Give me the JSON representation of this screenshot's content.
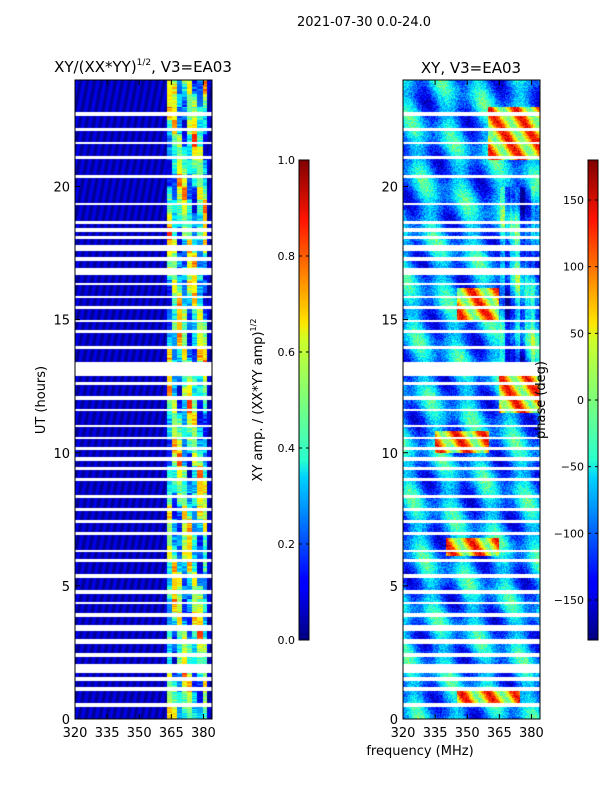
{
  "suptitle": "2021-07-30 0.0-24.0",
  "shared_xlabel": "frequency (MHz)",
  "chart_data": [
    {
      "type": "heatmap",
      "title_base": "XY/(XX*YY)",
      "title_sup": "1/2",
      "title_suffix": ", V3=EA03",
      "ylabel": "UT (hours)",
      "xlim": [
        320,
        384
      ],
      "ylim": [
        0,
        24
      ],
      "xticks": [
        "320",
        "335",
        "350",
        "365",
        "380"
      ],
      "xtick_values": [
        320,
        335,
        350,
        365,
        380
      ],
      "yticks": [
        "0",
        "5",
        "10",
        "15",
        "20"
      ],
      "ytick_values": [
        0,
        5,
        10,
        15,
        20
      ],
      "colorbar": {
        "label_base": "XY amp. / (XX*YY amp)",
        "label_sup": "1/2",
        "range": [
          0.0,
          1.0
        ],
        "ticks": [
          "0.0",
          "0.2",
          "0.4",
          "0.6",
          "0.8",
          "1.0"
        ],
        "tick_values": [
          0.0,
          0.2,
          0.4,
          0.6,
          0.8,
          1.0
        ]
      },
      "cmap": "jet"
    },
    {
      "type": "heatmap",
      "title": "XY, V3=EA03",
      "xlim": [
        320,
        384
      ],
      "ylim": [
        0,
        24
      ],
      "xticks": [
        "320",
        "335",
        "350",
        "365",
        "380"
      ],
      "xtick_values": [
        320,
        335,
        350,
        365,
        380
      ],
      "yticks": [
        "0",
        "5",
        "10",
        "15",
        "20"
      ],
      "ytick_values": [
        0,
        5,
        10,
        15,
        20
      ],
      "colorbar": {
        "label": "phase (deg)",
        "range": [
          -180,
          180
        ],
        "ticks": [
          "150",
          "100",
          "50",
          "0",
          "−50",
          "−100",
          "−150"
        ],
        "tick_values": [
          150,
          100,
          50,
          0,
          -50,
          -100,
          -150
        ]
      },
      "cmap": "jet"
    }
  ],
  "flagged_ut_bands": [
    [
      0.45,
      0.6
    ],
    [
      1.05,
      1.2
    ],
    [
      1.4,
      1.55
    ],
    [
      1.7,
      2.05
    ],
    [
      2.3,
      2.45
    ],
    [
      2.8,
      3.0
    ],
    [
      3.3,
      3.5
    ],
    [
      3.8,
      3.95
    ],
    [
      4.3,
      4.4
    ],
    [
      4.7,
      4.85
    ],
    [
      5.3,
      5.45
    ],
    [
      5.9,
      6.0
    ],
    [
      6.25,
      6.35
    ],
    [
      6.9,
      7.0
    ],
    [
      7.35,
      7.45
    ],
    [
      7.8,
      7.9
    ],
    [
      8.3,
      8.4
    ],
    [
      8.95,
      9.05
    ],
    [
      9.35,
      9.45
    ],
    [
      9.7,
      9.85
    ],
    [
      10.1,
      10.2
    ],
    [
      10.5,
      10.6
    ],
    [
      10.95,
      11.05
    ],
    [
      11.55,
      11.65
    ],
    [
      12.0,
      12.15
    ],
    [
      12.55,
      12.65
    ],
    [
      12.9,
      13.4
    ],
    [
      13.9,
      14.0
    ],
    [
      14.5,
      14.6
    ],
    [
      14.9,
      15.0
    ],
    [
      15.4,
      15.5
    ],
    [
      15.8,
      15.9
    ],
    [
      16.3,
      16.4
    ],
    [
      16.7,
      16.95
    ],
    [
      17.2,
      17.35
    ],
    [
      17.6,
      17.8
    ],
    [
      18.05,
      18.15
    ],
    [
      18.3,
      18.45
    ],
    [
      18.6,
      18.7
    ],
    [
      19.3,
      19.4
    ],
    [
      20.35,
      20.45
    ],
    [
      21.05,
      21.15
    ],
    [
      21.6,
      21.7
    ],
    [
      22.1,
      22.2
    ],
    [
      22.65,
      22.8
    ]
  ],
  "features": {
    "amp_bright_band_mhz": [
      363,
      382
    ],
    "phase_warm_patches": [
      {
        "f": [
          340,
          365
        ],
        "t": [
          6.1,
          6.8
        ]
      },
      {
        "f": [
          335,
          360
        ],
        "t": [
          10.0,
          10.8
        ]
      },
      {
        "f": [
          345,
          365
        ],
        "t": [
          15.0,
          16.2
        ]
      },
      {
        "f": [
          365,
          384
        ],
        "t": [
          11.5,
          13.0
        ]
      },
      {
        "f": [
          360,
          384
        ],
        "t": [
          21.0,
          23.0
        ]
      },
      {
        "f": [
          345,
          375
        ],
        "t": [
          0.5,
          1.2
        ]
      }
    ]
  }
}
